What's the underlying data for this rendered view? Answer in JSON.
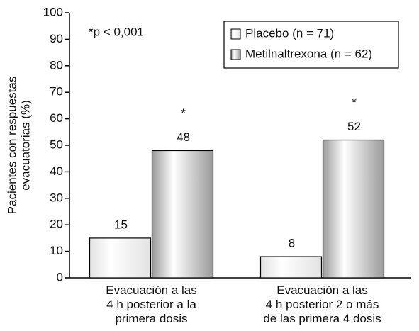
{
  "chart_data": {
    "type": "bar",
    "ylabel": "Pacientes con respuestas\nevacuatorias (%)",
    "categories": [
      "Evacuación a las\n4 h posterior a la\nprimera dosis",
      "Evacuación a las\n4 h posterior 2 o más\nde las primera 4 dosis"
    ],
    "series": [
      {
        "name": "Placebo (n = 71)",
        "color": "#e2e2e2",
        "values": [
          15,
          8
        ]
      },
      {
        "name": "Metilnaltrexona (n = 62)",
        "color": "#9a9a9a",
        "values": [
          48,
          52
        ]
      }
    ],
    "significance_markers": [
      "*",
      "*"
    ],
    "annotation": "*p < 0,001",
    "ylim": [
      0,
      100
    ],
    "yticks": [
      0,
      10,
      20,
      30,
      40,
      50,
      60,
      70,
      80,
      90,
      100
    ],
    "legend": "top-right"
  }
}
